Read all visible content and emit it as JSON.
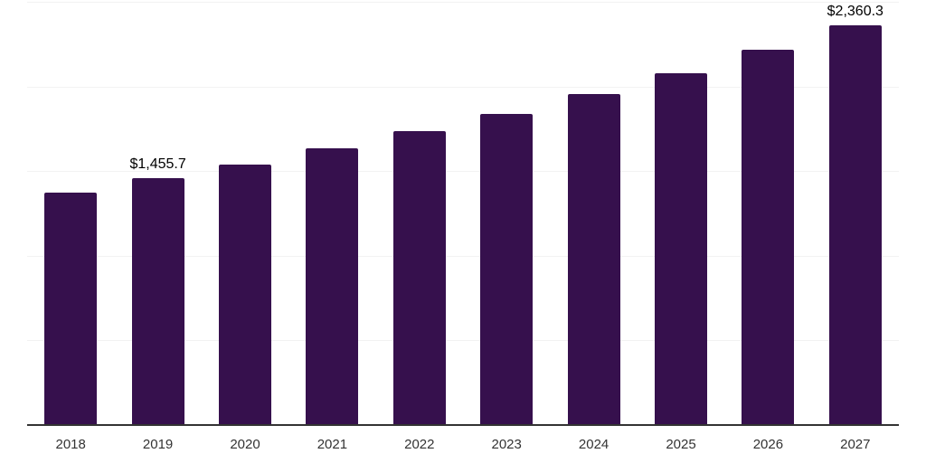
{
  "chart_data": {
    "type": "bar",
    "title": "",
    "xlabel": "",
    "ylabel": "",
    "categories": [
      "2018",
      "2019",
      "2020",
      "2021",
      "2022",
      "2023",
      "2024",
      "2025",
      "2026",
      "2027"
    ],
    "values": [
      1375.2,
      1455.7,
      1540.0,
      1636.0,
      1737.5,
      1839.0,
      1956.0,
      2078.5,
      2217.0,
      2360.3
    ],
    "data_labels": {
      "2019": "$1,455.7",
      "2027": "$2,360.3"
    },
    "ylim": [
      0,
      2500
    ],
    "gridline_step": 500,
    "grid": true,
    "legend": "none",
    "colors": {
      "bar": "#36104D",
      "axis_line": "#333333",
      "gridline": "#f2f2f2",
      "value_label": "#000000",
      "tick_label": "#333333",
      "background": "#ffffff"
    }
  }
}
